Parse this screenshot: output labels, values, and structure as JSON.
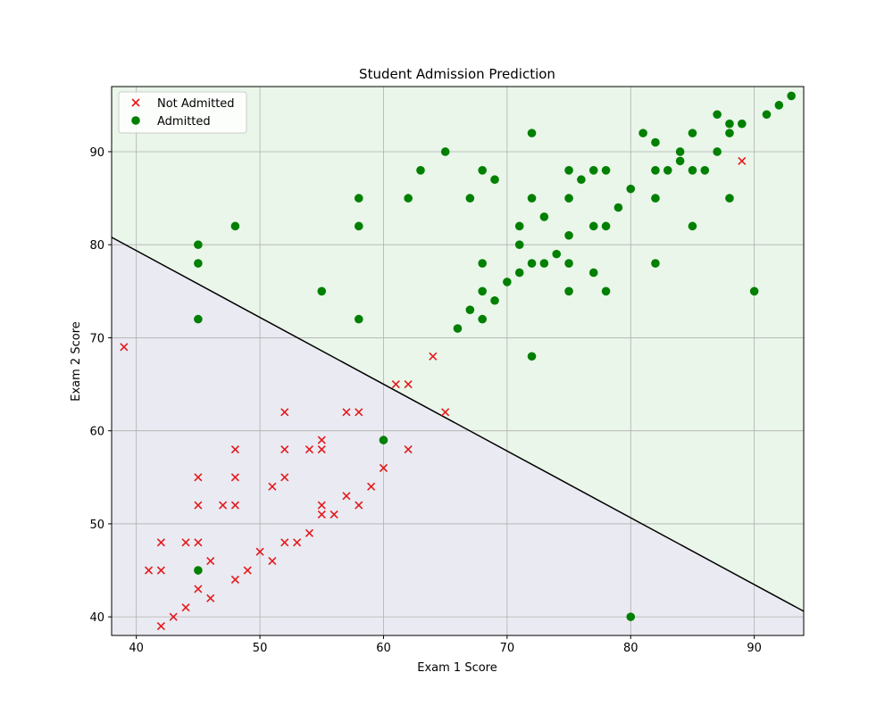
{
  "chart_data": {
    "type": "scatter",
    "title": "Student Admission Prediction",
    "xlabel": "Exam 1 Score",
    "ylabel": "Exam 2 Score",
    "xlim": [
      38,
      94
    ],
    "ylim": [
      38,
      97
    ],
    "xticks": [
      40,
      50,
      60,
      70,
      80,
      90
    ],
    "yticks": [
      40,
      50,
      60,
      70,
      80,
      90
    ],
    "grid": true,
    "legend_position": "top-left",
    "decision_boundary": {
      "points": [
        [
          38,
          80.8
        ],
        [
          94,
          40.6
        ]
      ]
    },
    "regions": [
      {
        "name": "admitted-region",
        "color": "#eaf6ea"
      },
      {
        "name": "not-admitted-region",
        "color": "#eaeaf2"
      }
    ],
    "series": [
      {
        "name": "Not Admitted",
        "marker": "x",
        "color": "#e31a1c",
        "points": [
          [
            39,
            69
          ],
          [
            41,
            45
          ],
          [
            42,
            45
          ],
          [
            42,
            48
          ],
          [
            42,
            39
          ],
          [
            43,
            40
          ],
          [
            44,
            41
          ],
          [
            44,
            48
          ],
          [
            45,
            55
          ],
          [
            45,
            52
          ],
          [
            45,
            48
          ],
          [
            45,
            43
          ],
          [
            46,
            46
          ],
          [
            46,
            42
          ],
          [
            47,
            52
          ],
          [
            48,
            58
          ],
          [
            48,
            55
          ],
          [
            48,
            52
          ],
          [
            48,
            44
          ],
          [
            49,
            45
          ],
          [
            50,
            47
          ],
          [
            51,
            54
          ],
          [
            51,
            46
          ],
          [
            52,
            62
          ],
          [
            52,
            58
          ],
          [
            52,
            55
          ],
          [
            52,
            48
          ],
          [
            53,
            48
          ],
          [
            54,
            58
          ],
          [
            54,
            49
          ],
          [
            55,
            59
          ],
          [
            55,
            58
          ],
          [
            55,
            52
          ],
          [
            55,
            51
          ],
          [
            56,
            51
          ],
          [
            57,
            62
          ],
          [
            57,
            53
          ],
          [
            58,
            62
          ],
          [
            58,
            52
          ],
          [
            59,
            54
          ],
          [
            60,
            56
          ],
          [
            61,
            65
          ],
          [
            62,
            65
          ],
          [
            62,
            58
          ],
          [
            64,
            68
          ],
          [
            65,
            62
          ],
          [
            89,
            89
          ]
        ]
      },
      {
        "name": "Admitted",
        "marker": "o",
        "color": "#008000",
        "points": [
          [
            45,
            80
          ],
          [
            45,
            78
          ],
          [
            45,
            72
          ],
          [
            45,
            45
          ],
          [
            48,
            82
          ],
          [
            55,
            75
          ],
          [
            58,
            85
          ],
          [
            58,
            82
          ],
          [
            58,
            72
          ],
          [
            60,
            59
          ],
          [
            62,
            85
          ],
          [
            63,
            88
          ],
          [
            65,
            90
          ],
          [
            66,
            71
          ],
          [
            67,
            85
          ],
          [
            67,
            73
          ],
          [
            68,
            88
          ],
          [
            68,
            78
          ],
          [
            68,
            75
          ],
          [
            68,
            72
          ],
          [
            69,
            87
          ],
          [
            69,
            74
          ],
          [
            70,
            76
          ],
          [
            71,
            82
          ],
          [
            71,
            80
          ],
          [
            71,
            77
          ],
          [
            72,
            92
          ],
          [
            72,
            85
          ],
          [
            72,
            78
          ],
          [
            72,
            68
          ],
          [
            73,
            83
          ],
          [
            73,
            78
          ],
          [
            74,
            79
          ],
          [
            75,
            88
          ],
          [
            75,
            85
          ],
          [
            75,
            81
          ],
          [
            75,
            78
          ],
          [
            75,
            75
          ],
          [
            76,
            87
          ],
          [
            77,
            88
          ],
          [
            77,
            82
          ],
          [
            77,
            77
          ],
          [
            78,
            88
          ],
          [
            78,
            82
          ],
          [
            78,
            75
          ],
          [
            79,
            84
          ],
          [
            80,
            86
          ],
          [
            80,
            40
          ],
          [
            81,
            92
          ],
          [
            82,
            91
          ],
          [
            82,
            88
          ],
          [
            82,
            85
          ],
          [
            82,
            78
          ],
          [
            83,
            88
          ],
          [
            84,
            90
          ],
          [
            84,
            89
          ],
          [
            85,
            92
          ],
          [
            85,
            88
          ],
          [
            85,
            82
          ],
          [
            86,
            88
          ],
          [
            87,
            94
          ],
          [
            87,
            90
          ],
          [
            88,
            93
          ],
          [
            88,
            92
          ],
          [
            88,
            85
          ],
          [
            89,
            93
          ],
          [
            90,
            75
          ],
          [
            91,
            94
          ],
          [
            92,
            95
          ],
          [
            93,
            96
          ]
        ]
      }
    ]
  }
}
